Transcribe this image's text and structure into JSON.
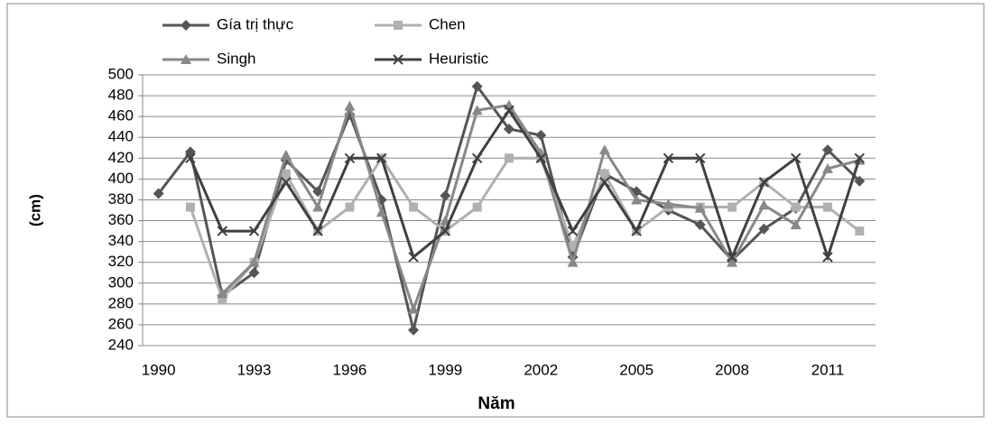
{
  "chart_data": {
    "type": "line",
    "x_label": "Năm",
    "y_label": "(cm)",
    "categories": [
      "1990",
      null,
      null,
      "1993",
      null,
      null,
      "1996",
      null,
      null,
      "1999",
      null,
      null,
      "2002",
      null,
      null,
      "2005",
      null,
      null,
      "2008",
      null,
      null,
      "2011",
      null
    ],
    "series": [
      {
        "name": "Gía trị thực",
        "color": "#555555",
        "marker": "diamond",
        "values": [
          386,
          426,
          288,
          310,
          418,
          388,
          462,
          380,
          255,
          384,
          489,
          448,
          442,
          325,
          405,
          388,
          370,
          356,
          322,
          352,
          372,
          428,
          398
        ]
      },
      {
        "name": "Chen",
        "color": "#b0b0b0",
        "marker": "square",
        "values": [
          null,
          373,
          285,
          320,
          405,
          350,
          373,
          420,
          373,
          350,
          373,
          420,
          420,
          335,
          405,
          350,
          373,
          373,
          373,
          397,
          373,
          373,
          350
        ]
      },
      {
        "name": "Singh",
        "color": "#888888",
        "marker": "triangle",
        "values": [
          null,
          null,
          290,
          320,
          423,
          373,
          470,
          368,
          275,
          360,
          466,
          471,
          425,
          320,
          428,
          380,
          376,
          372,
          320,
          375,
          356,
          410,
          418
        ]
      },
      {
        "name": "Heuristic",
        "color": "#404040",
        "marker": "x",
        "values": [
          null,
          420,
          350,
          350,
          397,
          350,
          420,
          420,
          325,
          350,
          420,
          466,
          420,
          350,
          397,
          350,
          420,
          420,
          325,
          397,
          420,
          325,
          420
        ]
      }
    ],
    "ylim": [
      240,
      500
    ],
    "yticks": [
      240,
      260,
      280,
      300,
      320,
      340,
      360,
      380,
      400,
      420,
      440,
      460,
      480,
      500
    ],
    "grid": true,
    "legend": "top"
  }
}
